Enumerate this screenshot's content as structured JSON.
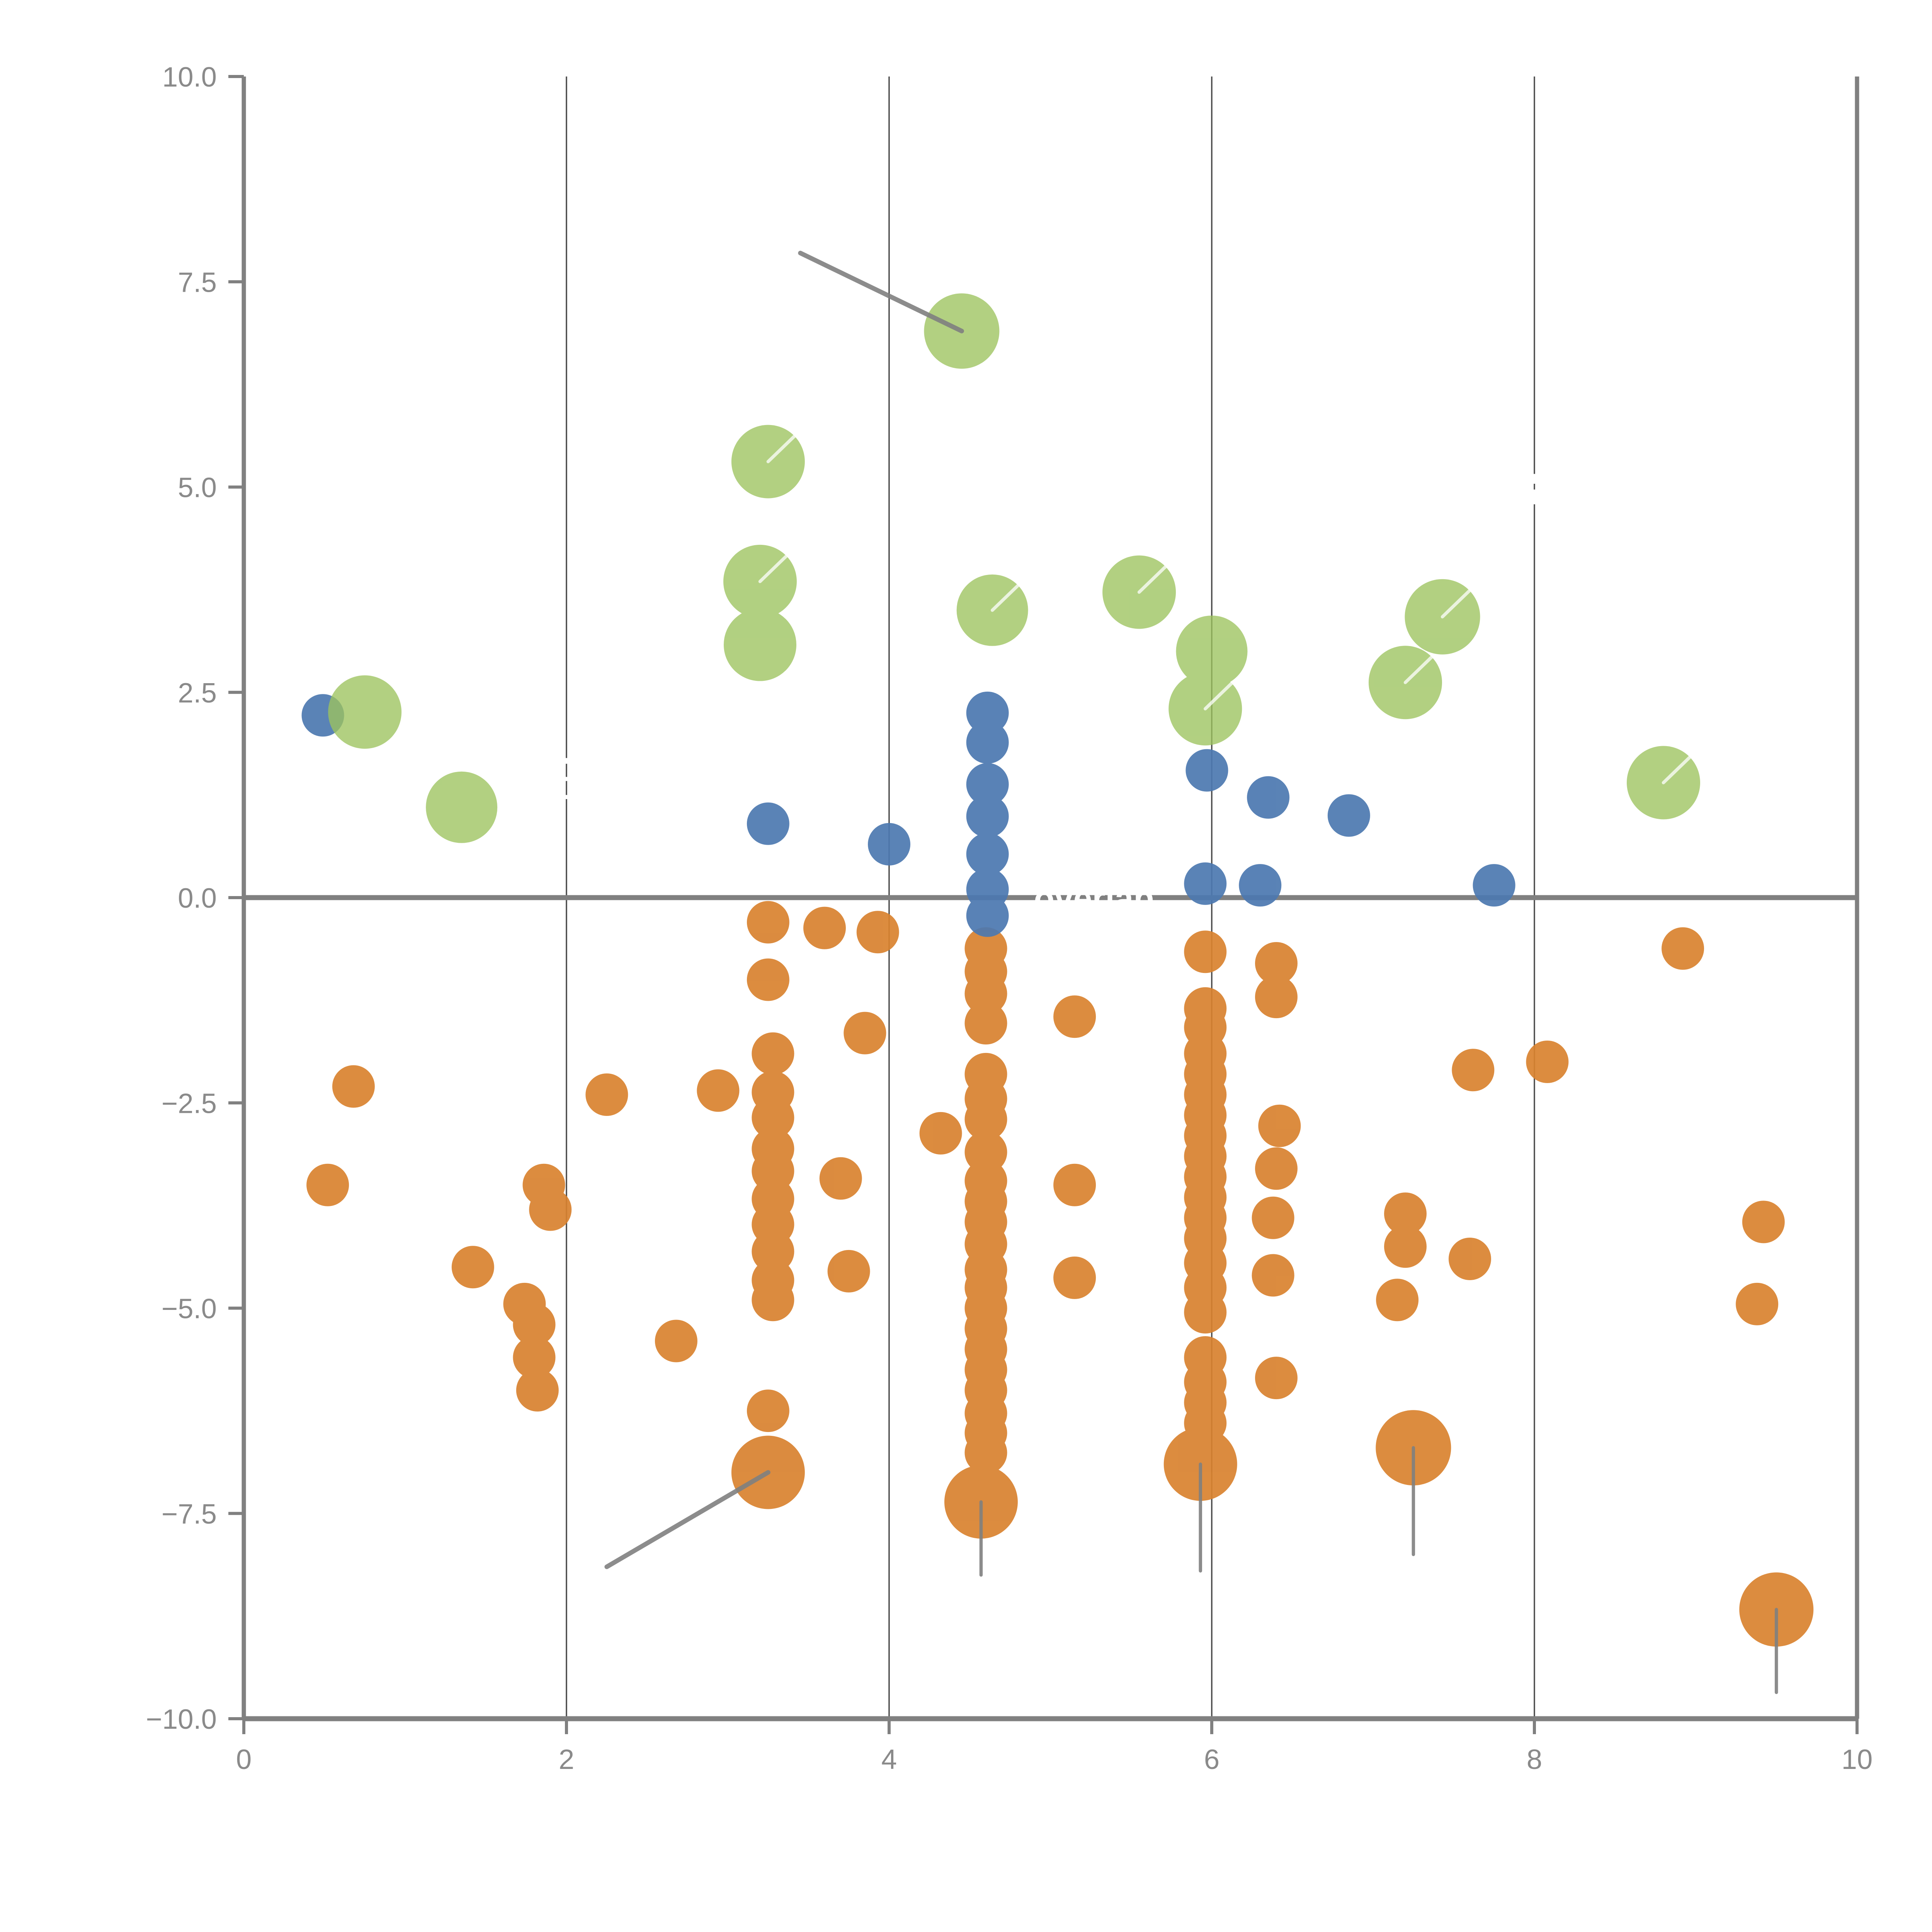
{
  "chart_data": {
    "type": "scatter",
    "title": "",
    "xlabel": "",
    "ylabel": "",
    "xlim": [
      0,
      10
    ],
    "ylim": [
      -10,
      10
    ],
    "x_ticks": {
      "values": [
        0,
        2,
        4,
        6,
        8,
        10
      ],
      "labels": [
        "0",
        "2",
        "4",
        "6",
        "8",
        "10"
      ]
    },
    "y_ticks": {
      "values": [
        10,
        7.5,
        5,
        2.5,
        0,
        -2.5,
        -5,
        -7.5,
        -10
      ],
      "labels": [
        "10.0",
        "7.5",
        "5.0",
        "2.5",
        "0.0",
        "−2.5",
        "−5.0",
        "−7.5",
        "−10.0"
      ]
    },
    "grid_x": [
      2,
      4,
      6,
      8
    ],
    "zero_line_y": 0,
    "legend": "none",
    "colors": {
      "orange": "#d9822f",
      "blue": "#4c78b0",
      "green": "#9cc35e",
      "axis": "#808080",
      "grid": "#4a4a4a",
      "white_mark": "#ffffff"
    },
    "series": [
      {
        "name": "orange",
        "color": "#d9822f",
        "opacity": 0.92,
        "points": [
          {
            "x": 0.52,
            "y": -3.5,
            "r": 11
          },
          {
            "x": 0.68,
            "y": -2.3,
            "r": 11
          },
          {
            "x": 1.42,
            "y": -4.5,
            "r": 11
          },
          {
            "x": 1.74,
            "y": -4.95,
            "r": 11
          },
          {
            "x": 1.8,
            "y": -5.2,
            "r": 11
          },
          {
            "x": 1.8,
            "y": -5.6,
            "r": 11
          },
          {
            "x": 1.82,
            "y": -6.0,
            "r": 11
          },
          {
            "x": 1.86,
            "y": -3.5,
            "r": 11
          },
          {
            "x": 1.9,
            "y": -3.8,
            "r": 11
          },
          {
            "x": 2.25,
            "y": -2.4,
            "r": 11
          },
          {
            "x": 2.68,
            "y": -5.4,
            "r": 11
          },
          {
            "x": 2.94,
            "y": -2.35,
            "r": 11
          },
          {
            "x": 3.25,
            "y": -0.3,
            "r": 11
          },
          {
            "x": 3.25,
            "y": -1.0,
            "r": 11
          },
          {
            "x": 3.28,
            "y": -1.9,
            "r": 11
          },
          {
            "x": 3.28,
            "y": -2.37,
            "r": 11
          },
          {
            "x": 3.28,
            "y": -2.68,
            "r": 11
          },
          {
            "x": 3.28,
            "y": -3.06,
            "r": 11
          },
          {
            "x": 3.28,
            "y": -3.33,
            "r": 11
          },
          {
            "x": 3.28,
            "y": -3.67,
            "r": 11
          },
          {
            "x": 3.28,
            "y": -3.98,
            "r": 11
          },
          {
            "x": 3.28,
            "y": -4.31,
            "r": 11
          },
          {
            "x": 3.28,
            "y": -4.66,
            "r": 11
          },
          {
            "x": 3.28,
            "y": -4.9,
            "r": 11
          },
          {
            "x": 3.25,
            "y": -6.25,
            "r": 11
          },
          {
            "x": 3.6,
            "y": -0.37,
            "r": 11
          },
          {
            "x": 3.93,
            "y": -0.42,
            "r": 11
          },
          {
            "x": 3.7,
            "y": -3.42,
            "r": 11
          },
          {
            "x": 3.75,
            "y": -4.55,
            "r": 11
          },
          {
            "x": 3.85,
            "y": -1.65,
            "r": 11
          },
          {
            "x": 4.32,
            "y": -2.87,
            "r": 11
          },
          {
            "x": 4.6,
            "y": -0.62,
            "r": 11
          },
          {
            "x": 4.6,
            "y": -0.9,
            "r": 11
          },
          {
            "x": 4.6,
            "y": -1.17,
            "r": 11
          },
          {
            "x": 4.6,
            "y": -1.53,
            "r": 11
          },
          {
            "x": 4.6,
            "y": -2.15,
            "r": 11
          },
          {
            "x": 4.6,
            "y": -2.45,
            "r": 11
          },
          {
            "x": 4.6,
            "y": -2.7,
            "r": 11
          },
          {
            "x": 4.6,
            "y": -3.1,
            "r": 11
          },
          {
            "x": 4.6,
            "y": -3.45,
            "r": 11
          },
          {
            "x": 4.6,
            "y": -3.7,
            "r": 11
          },
          {
            "x": 4.6,
            "y": -3.95,
            "r": 11
          },
          {
            "x": 4.6,
            "y": -4.22,
            "r": 11
          },
          {
            "x": 4.6,
            "y": -4.53,
            "r": 11
          },
          {
            "x": 4.6,
            "y": -4.75,
            "r": 11
          },
          {
            "x": 4.6,
            "y": -5.0,
            "r": 11
          },
          {
            "x": 4.6,
            "y": -5.25,
            "r": 11
          },
          {
            "x": 4.6,
            "y": -5.5,
            "r": 11
          },
          {
            "x": 4.6,
            "y": -5.75,
            "r": 11
          },
          {
            "x": 4.6,
            "y": -6.0,
            "r": 11
          },
          {
            "x": 4.6,
            "y": -6.28,
            "r": 11
          },
          {
            "x": 4.6,
            "y": -6.52,
            "r": 11
          },
          {
            "x": 4.6,
            "y": -6.76,
            "r": 11
          },
          {
            "x": 5.15,
            "y": -1.45,
            "r": 11
          },
          {
            "x": 5.15,
            "y": -3.5,
            "r": 11
          },
          {
            "x": 5.15,
            "y": -4.63,
            "r": 11
          },
          {
            "x": 5.96,
            "y": -0.66,
            "r": 11
          },
          {
            "x": 5.96,
            "y": -1.35,
            "r": 11
          },
          {
            "x": 5.96,
            "y": -1.58,
            "r": 11
          },
          {
            "x": 5.96,
            "y": -1.9,
            "r": 11
          },
          {
            "x": 5.96,
            "y": -2.15,
            "r": 11
          },
          {
            "x": 5.96,
            "y": -2.4,
            "r": 11
          },
          {
            "x": 5.96,
            "y": -2.65,
            "r": 11
          },
          {
            "x": 5.96,
            "y": -2.9,
            "r": 11
          },
          {
            "x": 5.96,
            "y": -3.15,
            "r": 11
          },
          {
            "x": 5.96,
            "y": -3.4,
            "r": 11
          },
          {
            "x": 5.96,
            "y": -3.65,
            "r": 11
          },
          {
            "x": 5.96,
            "y": -3.9,
            "r": 11
          },
          {
            "x": 5.96,
            "y": -4.15,
            "r": 11
          },
          {
            "x": 5.96,
            "y": -4.45,
            "r": 11
          },
          {
            "x": 5.96,
            "y": -4.75,
            "r": 11
          },
          {
            "x": 5.96,
            "y": -5.05,
            "r": 11
          },
          {
            "x": 5.96,
            "y": -5.6,
            "r": 11
          },
          {
            "x": 5.96,
            "y": -5.9,
            "r": 11
          },
          {
            "x": 5.96,
            "y": -6.15,
            "r": 11
          },
          {
            "x": 5.96,
            "y": -6.4,
            "r": 11
          },
          {
            "x": 6.4,
            "y": -0.8,
            "r": 11
          },
          {
            "x": 6.4,
            "y": -1.21,
            "r": 11
          },
          {
            "x": 6.42,
            "y": -2.78,
            "r": 11
          },
          {
            "x": 6.4,
            "y": -3.3,
            "r": 11
          },
          {
            "x": 6.38,
            "y": -3.9,
            "r": 11
          },
          {
            "x": 6.38,
            "y": -4.6,
            "r": 11
          },
          {
            "x": 6.4,
            "y": -5.85,
            "r": 11
          },
          {
            "x": 7.2,
            "y": -3.85,
            "r": 11
          },
          {
            "x": 7.2,
            "y": -4.25,
            "r": 11
          },
          {
            "x": 7.15,
            "y": -4.9,
            "r": 11
          },
          {
            "x": 7.62,
            "y": -2.1,
            "r": 11
          },
          {
            "x": 7.6,
            "y": -4.4,
            "r": 11
          },
          {
            "x": 8.08,
            "y": -2.0,
            "r": 11
          },
          {
            "x": 8.92,
            "y": -0.62,
            "r": 11
          },
          {
            "x": 9.42,
            "y": -3.95,
            "r": 11
          },
          {
            "x": 9.38,
            "y": -4.95,
            "r": 11
          },
          {
            "x": 3.25,
            "y": -7.0,
            "r": 19
          },
          {
            "x": 4.57,
            "y": -7.36,
            "r": 19
          },
          {
            "x": 5.93,
            "y": -6.9,
            "r": 19
          },
          {
            "x": 7.25,
            "y": -6.7,
            "r": 19.5
          },
          {
            "x": 9.5,
            "y": -8.67,
            "r": 19.2
          }
        ]
      },
      {
        "name": "blue",
        "color": "#4c78b0",
        "opacity": 0.92,
        "points": [
          {
            "x": 0.49,
            "y": 2.22,
            "r": 11
          },
          {
            "x": 3.25,
            "y": 0.9,
            "r": 11
          },
          {
            "x": 4.0,
            "y": 0.65,
            "r": 11
          },
          {
            "x": 4.61,
            "y": 2.25,
            "r": 11
          },
          {
            "x": 4.61,
            "y": 1.89,
            "r": 11
          },
          {
            "x": 4.61,
            "y": 1.38,
            "r": 11
          },
          {
            "x": 4.61,
            "y": 0.99,
            "r": 11
          },
          {
            "x": 4.61,
            "y": 0.53,
            "r": 11
          },
          {
            "x": 4.61,
            "y": 0.1,
            "r": 11
          },
          {
            "x": 4.61,
            "y": -0.22,
            "r": 11
          },
          {
            "x": 5.97,
            "y": 1.55,
            "r": 11
          },
          {
            "x": 5.96,
            "y": 0.17,
            "r": 11
          },
          {
            "x": 6.35,
            "y": 1.22,
            "r": 11
          },
          {
            "x": 6.3,
            "y": 0.15,
            "r": 11
          },
          {
            "x": 6.85,
            "y": 1.0,
            "r": 11
          },
          {
            "x": 7.75,
            "y": 0.15,
            "r": 11
          }
        ]
      },
      {
        "name": "green",
        "color": "#9cc35e",
        "opacity": 0.78,
        "points": [
          {
            "x": 0.75,
            "y": 2.26,
            "r": 19
          },
          {
            "x": 1.35,
            "y": 1.1,
            "r": 18.5
          },
          {
            "x": 3.25,
            "y": 5.31,
            "r": 19,
            "white_line": true
          },
          {
            "x": 3.2,
            "y": 3.85,
            "r": 19,
            "white_line": true
          },
          {
            "x": 3.2,
            "y": 3.08,
            "r": 18.8
          },
          {
            "x": 4.45,
            "y": 6.9,
            "r": 19.5
          },
          {
            "x": 4.64,
            "y": 3.5,
            "r": 18.5,
            "white_line": true
          },
          {
            "x": 5.55,
            "y": 3.72,
            "r": 19,
            "white_line": true
          },
          {
            "x": 6.0,
            "y": 3.0,
            "r": 18.5
          },
          {
            "x": 5.96,
            "y": 2.3,
            "r": 19,
            "white_line": true
          },
          {
            "x": 7.2,
            "y": 2.62,
            "r": 19,
            "white_line": true
          },
          {
            "x": 7.43,
            "y": 3.42,
            "r": 19.5,
            "white_line": true
          },
          {
            "x": 8.8,
            "y": 1.4,
            "r": 19,
            "white_line": true
          }
        ]
      }
    ],
    "annotations": {
      "gray_leader_lines": [
        {
          "x1": 3.45,
          "y1": 7.85,
          "x2": 4.45,
          "y2": 6.9,
          "width": 2.4
        },
        {
          "x1": 2.25,
          "y1": -8.15,
          "x2": 3.25,
          "y2": -7.0,
          "width": 2.4
        }
      ],
      "gray_stems": [
        {
          "x": 4.57,
          "y1": -7.36,
          "y2": -8.25,
          "width": 1.7
        },
        {
          "x": 5.93,
          "y1": -6.9,
          "y2": -8.2,
          "width": 1.7
        },
        {
          "x": 7.25,
          "y1": -6.7,
          "y2": -8.0,
          "width": 1.7
        },
        {
          "x": 9.5,
          "y1": -8.67,
          "y2": -9.68,
          "width": 1.7
        }
      ],
      "white_text_on_zero_line": {
        "text": "overlap",
        "x": 5.27,
        "y": 0.0,
        "font_size": 17.5
      },
      "white_gaps_on_gridlines": [
        {
          "grid_x": 2,
          "segments": [
            [
              1.7,
              1.63
            ],
            [
              1.47,
              1.42
            ],
            [
              1.25,
              1.2
            ]
          ]
        },
        {
          "grid_x": 8,
          "segments": [
            [
              5.16,
              5.04
            ],
            [
              4.97,
              4.79
            ]
          ]
        }
      ],
      "white_line_angle_deg": -44,
      "white_line_opacity": 0.75
    }
  }
}
